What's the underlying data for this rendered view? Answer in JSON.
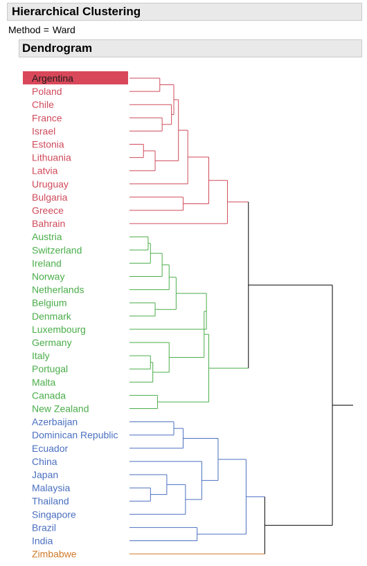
{
  "header": {
    "title": "Hierarchical Clustering"
  },
  "method": {
    "label": "Method",
    "value": "Ward"
  },
  "section": {
    "title": "Dendrogram"
  },
  "colors": {
    "red": "#cf4a5a",
    "green": "#4aad4a",
    "blue": "#4a6fc0",
    "orange": "#d07a2a",
    "root": "#000000",
    "highlight": "#d9485a"
  },
  "chart_data": {
    "type": "dendrogram",
    "orientation": "right",
    "selected": "Argentina",
    "leaves": [
      {
        "name": "Argentina",
        "cluster": "red"
      },
      {
        "name": "Poland",
        "cluster": "red"
      },
      {
        "name": "Chile",
        "cluster": "red"
      },
      {
        "name": "France",
        "cluster": "red"
      },
      {
        "name": "Israel",
        "cluster": "red"
      },
      {
        "name": "Estonia",
        "cluster": "red"
      },
      {
        "name": "Lithuania",
        "cluster": "red"
      },
      {
        "name": "Latvia",
        "cluster": "red"
      },
      {
        "name": "Uruguay",
        "cluster": "red"
      },
      {
        "name": "Bulgaria",
        "cluster": "red"
      },
      {
        "name": "Greece",
        "cluster": "red"
      },
      {
        "name": "Bahrain",
        "cluster": "red"
      },
      {
        "name": "Austria",
        "cluster": "green"
      },
      {
        "name": "Switzerland",
        "cluster": "green"
      },
      {
        "name": "Ireland",
        "cluster": "green"
      },
      {
        "name": "Norway",
        "cluster": "green"
      },
      {
        "name": "Netherlands",
        "cluster": "green"
      },
      {
        "name": "Belgium",
        "cluster": "green"
      },
      {
        "name": "Denmark",
        "cluster": "green"
      },
      {
        "name": "Luxembourg",
        "cluster": "green"
      },
      {
        "name": "Germany",
        "cluster": "green"
      },
      {
        "name": "Italy",
        "cluster": "green"
      },
      {
        "name": "Portugal",
        "cluster": "green"
      },
      {
        "name": "Malta",
        "cluster": "green"
      },
      {
        "name": "Canada",
        "cluster": "green"
      },
      {
        "name": "New Zealand",
        "cluster": "green"
      },
      {
        "name": "Azerbaijan",
        "cluster": "blue"
      },
      {
        "name": "Dominican Republic",
        "cluster": "blue"
      },
      {
        "name": "Ecuador",
        "cluster": "blue"
      },
      {
        "name": "China",
        "cluster": "blue"
      },
      {
        "name": "Japan",
        "cluster": "blue"
      },
      {
        "name": "Malaysia",
        "cluster": "blue"
      },
      {
        "name": "Thailand",
        "cluster": "blue"
      },
      {
        "name": "Singapore",
        "cluster": "blue"
      },
      {
        "name": "Brazil",
        "cluster": "blue"
      },
      {
        "name": "India",
        "cluster": "blue"
      },
      {
        "name": "Zimbabwe",
        "cluster": "orange"
      }
    ],
    "merges": [
      {
        "id": "m1",
        "a": "Argentina",
        "b": "Poland",
        "h": 0.13
      },
      {
        "id": "m2",
        "a": "France",
        "b": "Israel",
        "h": 0.14
      },
      {
        "id": "m3",
        "a": "Chile",
        "b": "m2",
        "h": 0.18
      },
      {
        "id": "m4",
        "a": "Estonia",
        "b": "Lithuania",
        "h": 0.06
      },
      {
        "id": "m5",
        "a": "m4",
        "b": "Latvia",
        "h": 0.11
      },
      {
        "id": "m6",
        "a": "m1",
        "b": "m3",
        "h": 0.19
      },
      {
        "id": "m7",
        "a": "m6",
        "b": "m5",
        "h": 0.21
      },
      {
        "id": "m8",
        "a": "m7",
        "b": "Uruguay",
        "h": 0.25
      },
      {
        "id": "m9",
        "a": "Bulgaria",
        "b": "Greece",
        "h": 0.23
      },
      {
        "id": "m10",
        "a": "m8",
        "b": "m9",
        "h": 0.34
      },
      {
        "id": "m11",
        "a": "m10",
        "b": "Bahrain",
        "h": 0.42
      },
      {
        "id": "m12",
        "a": "Austria",
        "b": "Switzerland",
        "h": 0.08
      },
      {
        "id": "m13",
        "a": "m12",
        "b": "Ireland",
        "h": 0.09
      },
      {
        "id": "m14",
        "a": "m13",
        "b": "Norway",
        "h": 0.14
      },
      {
        "id": "m15",
        "a": "m14",
        "b": "Netherlands",
        "h": 0.17
      },
      {
        "id": "m16",
        "a": "Belgium",
        "b": "Denmark",
        "h": 0.11
      },
      {
        "id": "m17",
        "a": "m15",
        "b": "m16",
        "h": 0.2
      },
      {
        "id": "m18",
        "a": "m17",
        "b": "Luxembourg",
        "h": 0.33
      },
      {
        "id": "m19",
        "a": "Italy",
        "b": "Portugal",
        "h": 0.09
      },
      {
        "id": "m20",
        "a": "m19",
        "b": "Malta",
        "h": 0.1
      },
      {
        "id": "m21",
        "a": "Germany",
        "b": "m20",
        "h": 0.17
      },
      {
        "id": "m22",
        "a": "m18",
        "b": "m21",
        "h": 0.32
      },
      {
        "id": "m23",
        "a": "Canada",
        "b": "New Zealand",
        "h": 0.12
      },
      {
        "id": "m24",
        "a": "m22",
        "b": "m23",
        "h": 0.34
      },
      {
        "id": "m25",
        "a": "m11",
        "b": "m24",
        "h": 0.51
      },
      {
        "id": "m26",
        "a": "Azerbaijan",
        "b": "Dominican Republic",
        "h": 0.19
      },
      {
        "id": "m27",
        "a": "m26",
        "b": "Ecuador",
        "h": 0.23
      },
      {
        "id": "m28",
        "a": "Malaysia",
        "b": "Thailand",
        "h": 0.09
      },
      {
        "id": "m29",
        "a": "Japan",
        "b": "m28",
        "h": 0.16
      },
      {
        "id": "m30",
        "a": "m29",
        "b": "Singapore",
        "h": 0.24
      },
      {
        "id": "m31",
        "a": "China",
        "b": "m30",
        "h": 0.31
      },
      {
        "id": "m32",
        "a": "m27",
        "b": "m31",
        "h": 0.38
      },
      {
        "id": "m33",
        "a": "Brazil",
        "b": "India",
        "h": 0.29
      },
      {
        "id": "m34",
        "a": "m32",
        "b": "m33",
        "h": 0.5
      },
      {
        "id": "m35",
        "a": "m34",
        "b": "Zimbabwe",
        "h": 0.58
      },
      {
        "id": "m36",
        "a": "m25",
        "b": "m35",
        "h": 0.87
      }
    ]
  }
}
